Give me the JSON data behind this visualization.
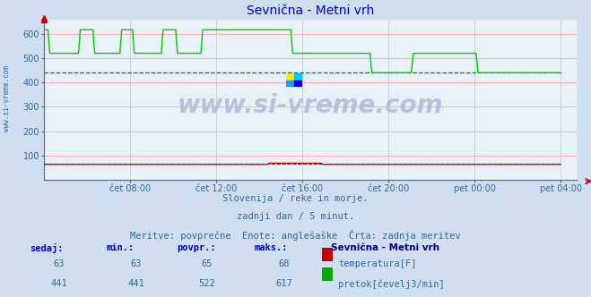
{
  "title": "Sevnična - Metni vrh",
  "bg_color": "#d0dff0",
  "plot_bg_color": "#e8f0f8",
  "grid_color_h": "#ffaaaa",
  "grid_color_v": "#ffbbbb",
  "xlabel_times": [
    "čet 08:00",
    "čet 12:00",
    "čet 16:00",
    "čet 20:00",
    "pet 00:00",
    "pet 04:00"
  ],
  "x_tick_pos": [
    0.1667,
    0.3333,
    0.5,
    0.6667,
    0.8333,
    1.0
  ],
  "ylim": [
    0,
    660
  ],
  "yticks": [
    100,
    200,
    300,
    400,
    500,
    600
  ],
  "footer_line1": "Slovenija / reke in morje.",
  "footer_line2": "zadnji dan / 5 minut.",
  "footer_line3": "Meritve: povprečne  Enote: anglešaške  Črta: zadnja meritev",
  "watermark": "www.si-vreme.com",
  "legend_title": "Sevnična - Metni vrh",
  "legend_rows": [
    {
      "sedaj": "63",
      "min": "63",
      "povpr": "65",
      "maks": "68",
      "color": "#cc0000",
      "label": "temperatura[F]"
    },
    {
      "sedaj": "441",
      "min": "441",
      "povpr": "522",
      "maks": "617",
      "color": "#00aa00",
      "label": "pretok[čevelj3/min]"
    }
  ],
  "temp_color": "#cc0000",
  "flow_color": "#00cc00",
  "avg_flow_color": "#008800",
  "avg_flow_val": 441,
  "avg_temp_val": 65,
  "sidebar_text": "www.si-vreme.com",
  "sidebar_color": "#336699",
  "arrow_color": "#cc0000",
  "title_color": "#0000cc",
  "footer_color": "#336699",
  "tick_color": "#336699",
  "legend_header_color": "#0000cc",
  "legend_val_color": "#336699",
  "logo_colors": [
    "#ffee00",
    "#00ccff",
    "#0055cc",
    "#0000aa"
  ]
}
